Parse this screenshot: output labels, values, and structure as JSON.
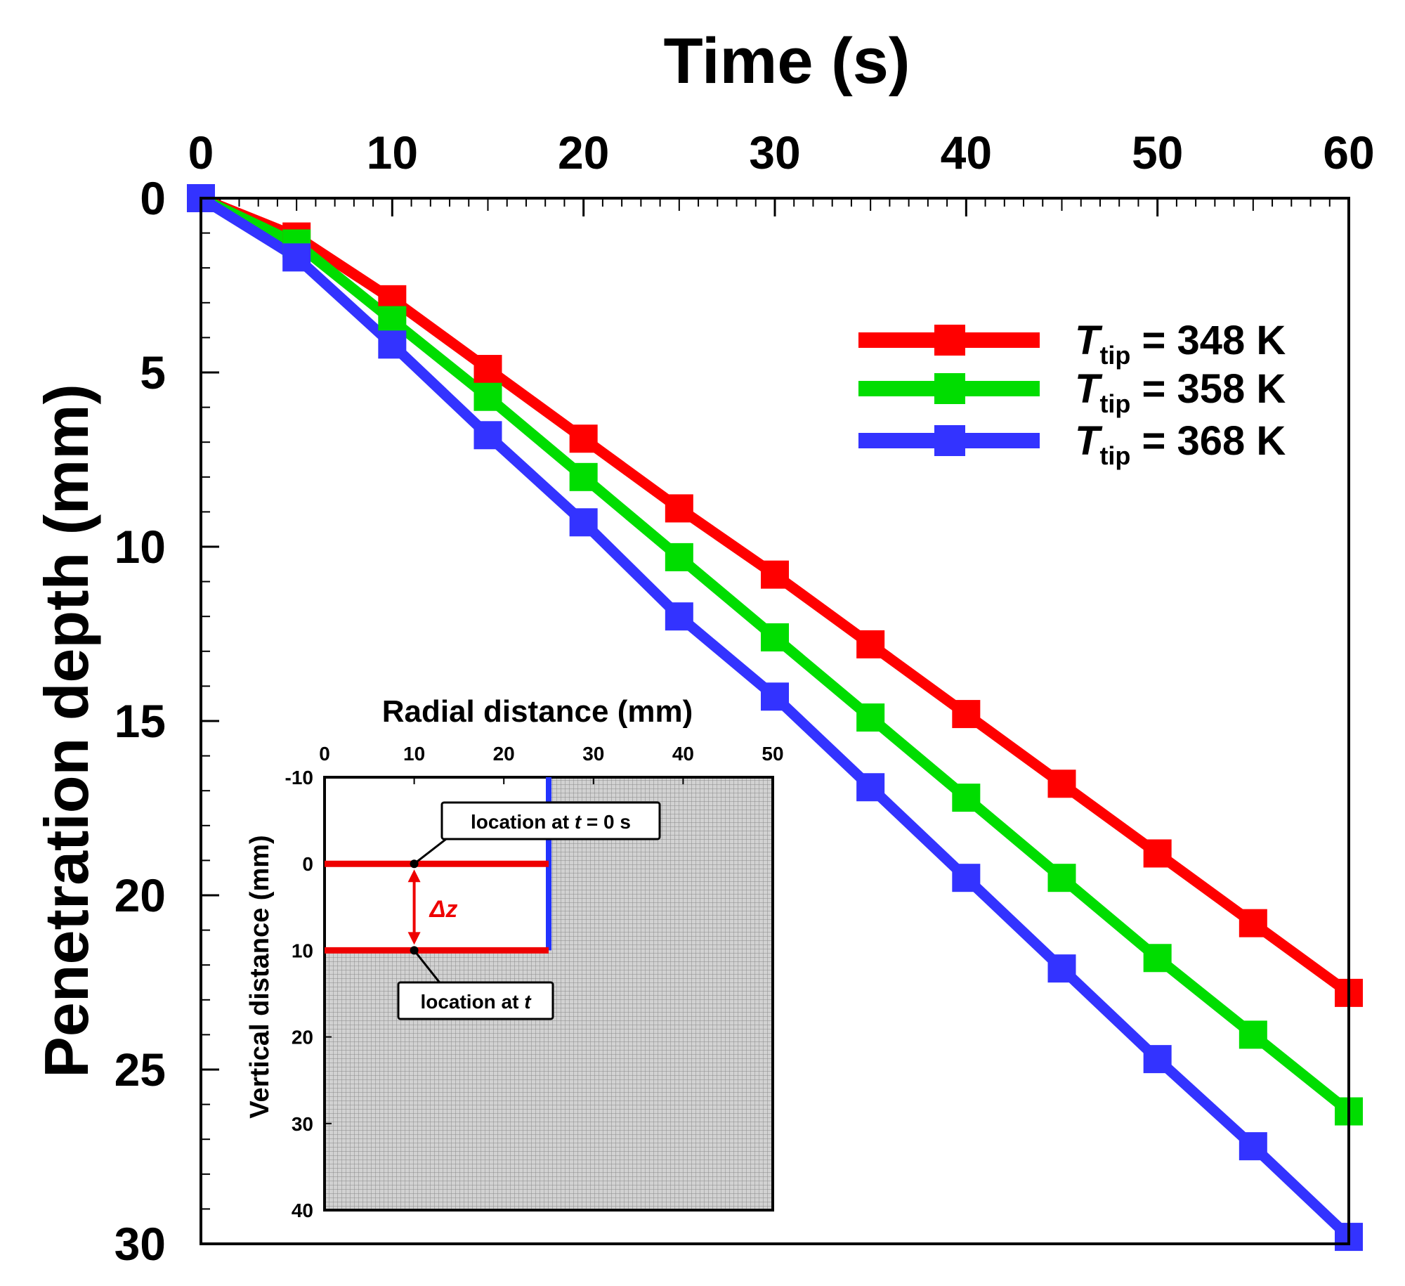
{
  "chart_data": {
    "type": "line",
    "title": "",
    "xlabel": "Time (s)",
    "ylabel": "Penetration depth (mm)",
    "xlim": [
      0,
      60
    ],
    "ylim": [
      0,
      30
    ],
    "y_inverted": true,
    "x_axis_position": "top",
    "x_ticks": [
      0,
      10,
      20,
      30,
      40,
      50,
      60
    ],
    "y_ticks": [
      0,
      5,
      10,
      15,
      20,
      25,
      30
    ],
    "x": [
      0,
      5,
      10,
      15,
      20,
      25,
      30,
      35,
      40,
      45,
      50,
      55,
      60
    ],
    "series": [
      {
        "name": "T_tip = 348 K",
        "label_T": "T",
        "label_sub": "tip",
        "label_rest": " = 348 K",
        "color": "#ff0000",
        "values": [
          0,
          1.1,
          2.9,
          4.9,
          6.9,
          8.9,
          10.8,
          12.8,
          14.8,
          16.8,
          18.8,
          20.8,
          22.8
        ]
      },
      {
        "name": "T_tip = 358 K",
        "label_T": "T",
        "label_sub": "tip",
        "label_rest": " = 358 K",
        "color": "#00dd00",
        "values": [
          0,
          1.3,
          3.5,
          5.7,
          8.0,
          10.3,
          12.6,
          14.9,
          17.2,
          19.5,
          21.8,
          24.0,
          26.2
        ]
      },
      {
        "name": "T_tip = 368 K",
        "label_T": "T",
        "label_sub": "tip",
        "label_rest": " = 368 K",
        "color": "#3333ff",
        "values": [
          0,
          1.7,
          4.2,
          6.8,
          9.3,
          12.0,
          14.3,
          16.9,
          19.5,
          22.1,
          24.7,
          27.2,
          29.8
        ]
      }
    ],
    "legend": "top-right",
    "inset": {
      "xlabel": "Radial distance (mm)",
      "ylabel": "Vertical distance (mm)",
      "xlim": [
        0,
        50
      ],
      "ylim": [
        -10,
        40
      ],
      "x_ticks": [
        0,
        10,
        20,
        30,
        40,
        50
      ],
      "y_ticks": [
        -10,
        0,
        10,
        20,
        30,
        40
      ],
      "upper_line_depth": 0,
      "lower_line_depth": 10,
      "tip_radius": 25,
      "callout_top_prefix": "location at ",
      "callout_top_var": "t",
      "callout_top_suffix": " = 0 s",
      "callout_bottom_prefix": "location at ",
      "callout_bottom_var": "t",
      "delta_label": "Δz",
      "red": "#ee0000",
      "blue": "#2233ff"
    }
  }
}
